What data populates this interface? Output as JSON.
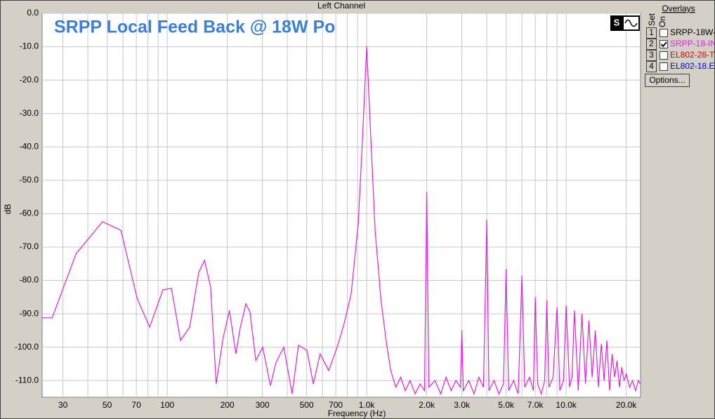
{
  "header": "Left Channel",
  "chart_data": {
    "type": "line",
    "title": "SRPP Local Feed Back @ 18W Po",
    "xlabel": "Frequency (Hz)",
    "ylabel": "dB",
    "xscale": "log",
    "grid": true,
    "xlim": [
      23.6,
      23600
    ],
    "ylim": [
      -115,
      0
    ],
    "xticks": [
      30,
      50,
      70,
      100,
      200,
      300,
      500,
      700,
      {
        "value": 1000,
        "label": "1.0k"
      },
      {
        "value": 2000,
        "label": "2.0k"
      },
      {
        "value": 3000,
        "label": "3.0k"
      },
      {
        "value": 5000,
        "label": "5.0k"
      },
      {
        "value": 7000,
        "label": "7.0k"
      },
      {
        "value": 10000,
        "label": "10.0k"
      },
      {
        "value": 20000,
        "label": "20.0k"
      }
    ],
    "xminor": [
      40,
      60,
      80,
      90,
      400,
      600,
      800,
      900,
      4000,
      6000,
      8000,
      9000
    ],
    "yticks": [
      {
        "value": 0,
        "label": "0.0"
      },
      {
        "value": -10,
        "label": "-10.0"
      },
      {
        "value": -20,
        "label": "-20.0"
      },
      {
        "value": -30,
        "label": "-30.0"
      },
      {
        "value": -40,
        "label": "-40.0"
      },
      {
        "value": -50,
        "label": "-50.0"
      },
      {
        "value": -60,
        "label": "-60.0"
      },
      {
        "value": -70,
        "label": "-70.0"
      },
      {
        "value": -80,
        "label": "-80.0"
      },
      {
        "value": -90,
        "label": "-90.0"
      },
      {
        "value": -100,
        "label": "-100.0"
      },
      {
        "value": -110,
        "label": "-110.0"
      }
    ],
    "color": "#e020e0",
    "x": [
      23.6,
      26.5,
      34.9,
      47.4,
      58.6,
      70.6,
      81.6,
      95.2,
      105,
      116.6,
      129.6,
      144,
      153.8,
      165,
      176,
      191,
      205,
      221,
      232,
      248,
      260,
      278,
      301,
      329,
      351,
      384,
      423,
      455,
      502,
      540,
      584,
      645,
      711,
      770,
      836,
      907,
      952,
      1000,
      1050,
      1102,
      1180,
      1258,
      1320,
      1400,
      1480,
      1560,
      1650,
      1750,
      1850,
      1950,
      2000,
      2050,
      2200,
      2350,
      2500,
      2650,
      2800,
      2950,
      3000,
      3050,
      3250,
      3450,
      3650,
      3850,
      4000,
      4100,
      4350,
      4600,
      4850,
      5000,
      5150,
      5450,
      5750,
      6000,
      6200,
      6550,
      6850,
      7000,
      7200,
      7500,
      7800,
      8000,
      8200,
      8600,
      9000,
      9300,
      9700,
      10000,
      10400,
      10700,
      11000,
      11500,
      12000,
      12500,
      13000,
      13500,
      14000,
      14500,
      15000,
      15500,
      16000,
      16500,
      17000,
      17500,
      18000,
      18500,
      19000,
      19500,
      20000,
      20800,
      21500,
      22300,
      23000,
      23600
    ],
    "values": [
      -91.2,
      -91.2,
      -72,
      -62.4,
      -65,
      -85.3,
      -94,
      -82.8,
      -82.4,
      -98,
      -94,
      -77.5,
      -74,
      -82,
      -111,
      -97,
      -89,
      -102,
      -94.3,
      -87,
      -89.5,
      -104,
      -100,
      -111.5,
      -104.6,
      -100,
      -114,
      -99.4,
      -101,
      -111,
      -102,
      -107,
      -100,
      -93,
      -84,
      -63,
      -38,
      -9.9,
      -38,
      -65,
      -86,
      -99,
      -107,
      -112,
      -109,
      -113,
      -110,
      -114,
      -111,
      -113,
      -53.5,
      -112,
      -110,
      -114,
      -109,
      -113,
      -110,
      -112,
      -95,
      -113,
      -110,
      -114,
      -109,
      -112,
      -61.8,
      -113,
      -110,
      -114,
      -111,
      -76.5,
      -113,
      -110,
      -114,
      -78.5,
      -112,
      -109,
      -113,
      -85,
      -111,
      -114,
      -110,
      -86,
      -112,
      -109,
      -88,
      -113,
      -110,
      -87.5,
      -112,
      -109,
      -89,
      -113,
      -90,
      -111,
      -92,
      -109,
      -95,
      -112,
      -99,
      -110,
      -98,
      -113,
      -102,
      -109,
      -104,
      -112,
      -106,
      -110,
      -108,
      -112,
      -110,
      -113,
      -110,
      -111
    ]
  },
  "panel": {
    "title": "Overlays",
    "set_label": "Set",
    "on_label": "On",
    "button": "Options...",
    "overlays": [
      {
        "set": "1",
        "name": "SRPP-18W-",
        "color": "#000000",
        "on": false
      },
      {
        "set": "2",
        "name": "SRPP-18-IN",
        "color": "#e020e0",
        "on": true
      },
      {
        "set": "3",
        "name": "EL802-28-T",
        "color": "#e00000",
        "on": false
      },
      {
        "set": "4",
        "name": "EL802-18.E",
        "color": "#0000e0",
        "on": false
      }
    ]
  }
}
